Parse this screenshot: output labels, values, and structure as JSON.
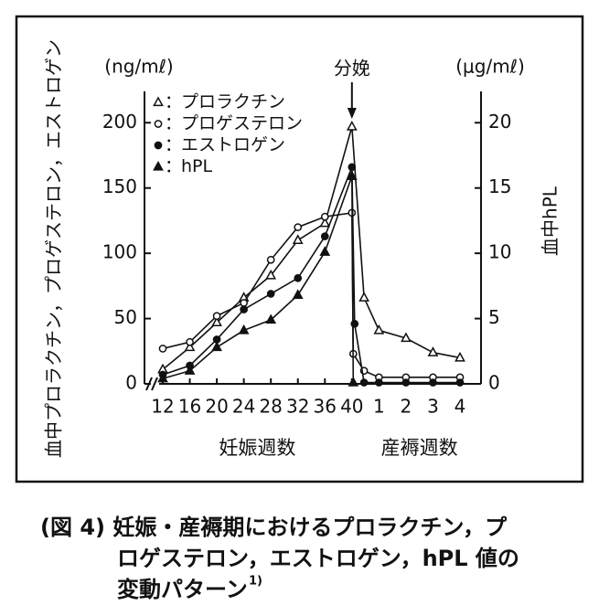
{
  "chart_data": {
    "type": "line",
    "ylabel": "血中プロラクチン，プロゲステロン，エストロゲン",
    "y2label": "血中hPL",
    "yunit": "(ng/mℓ)",
    "y2unit": "(μg/mℓ)",
    "xlabels": [
      {
        "text": "妊娠週数",
        "x": 26
      },
      {
        "text": "産褥週数",
        "x": 42.5
      }
    ],
    "annotation": {
      "text": "分娩",
      "x": 40
    },
    "legend_separator": "：",
    "axis_break": true,
    "xlim": [
      9.3,
      44.8
    ],
    "xticks": [
      12,
      16,
      20,
      24,
      28,
      32,
      36,
      40,
      {
        "value": 41,
        "label": "1"
      },
      {
        "value": 42,
        "label": "2"
      },
      {
        "value": 43,
        "label": "3"
      },
      {
        "value": 44,
        "label": "4"
      }
    ],
    "ylim": [
      0,
      224
    ],
    "yticks": [
      0,
      50,
      100,
      150,
      200
    ],
    "y2lim": [
      0,
      22.4
    ],
    "y2ticks": [
      0,
      5,
      10,
      15,
      20
    ],
    "series": [
      {
        "name": "プロラクチン",
        "color": "#111111",
        "marker": "triangle-open",
        "x": [
          12,
          16,
          20,
          24,
          28,
          32,
          36,
          40,
          40.45,
          41,
          42,
          43,
          44
        ],
        "values": [
          11,
          28,
          47,
          66,
          83,
          110,
          123,
          197,
          66,
          41,
          35,
          24,
          20
        ]
      },
      {
        "name": "プロゲステロン",
        "color": "#111111",
        "marker": "circle-open",
        "x": [
          12,
          16,
          20,
          24,
          28,
          32,
          36,
          40,
          40.05,
          40.45,
          41,
          42,
          43,
          44
        ],
        "values": [
          27,
          32,
          52,
          62,
          95,
          120,
          128,
          131,
          23,
          10,
          5,
          5,
          5,
          5
        ]
      },
      {
        "name": "エストロゲン",
        "color": "#111111",
        "marker": "circle-filled",
        "x": [
          12,
          16,
          20,
          24,
          28,
          32,
          36,
          40,
          40.1,
          40.45,
          41,
          42,
          43,
          44
        ],
        "values": [
          7,
          14,
          34,
          57,
          69,
          81,
          113,
          166,
          46,
          1,
          1,
          1,
          1,
          1
        ]
      },
      {
        "name": "hPL",
        "color": "#111111",
        "marker": "triangle-filled",
        "axis": "y2",
        "x": [
          12,
          16,
          20,
          24,
          28,
          32,
          36,
          40,
          40.05
        ],
        "values": [
          0.4,
          1.0,
          2.8,
          4.1,
          4.9,
          6.8,
          10.1,
          15.9,
          0.1
        ]
      }
    ]
  },
  "caption": {
    "lines": [
      "(図 4) 妊娠・産褥期におけるプロラクチン，プ",
      "ロゲステロン，エストロゲン，hPL 値の",
      "変動パターン"
    ],
    "ref": "1)"
  }
}
